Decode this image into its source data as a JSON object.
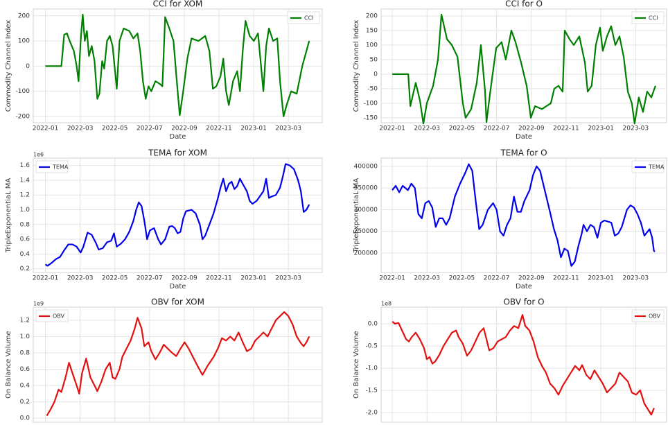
{
  "chart_data": [
    {
      "type": "line",
      "title": "CCI for XOM",
      "xlabel": "Date",
      "ylabel": "Commodity Channel Index",
      "grid": true,
      "legend": "upper right",
      "x": [
        0,
        0.92,
        1.08,
        1.24,
        1.4,
        1.64,
        1.8,
        1.91,
        2.03,
        2.15,
        2.27,
        2.39,
        2.51,
        2.67,
        2.83,
        2.99,
        3.11,
        3.27,
        3.39,
        3.55,
        3.71,
        3.87,
        4.11,
        4.27,
        4.51,
        4.83,
        5.07,
        5.31,
        5.46,
        5.62,
        5.78,
        5.94,
        6.1,
        6.34,
        6.58,
        6.74,
        6.9,
        7.14,
        7.38,
        7.62,
        7.74,
        7.94,
        8.18,
        8.42,
        8.82,
        9.21,
        9.45,
        9.65,
        9.85,
        10.09,
        10.25,
        10.41,
        10.57,
        10.81,
        11.05,
        11.21,
        11.37,
        11.53,
        11.77,
        12.01,
        12.25,
        12.56,
        12.72,
        12.88,
        13.12,
        13.36,
        13.52,
        13.72,
        13.92,
        14.16,
        14.48,
        14.8,
        15.2
      ],
      "series": [
        {
          "name": "CCI",
          "color": "#008000",
          "values": [
            0,
            0,
            125,
            130,
            100,
            60,
            0,
            -60,
            100,
            205,
            100,
            140,
            40,
            80,
            20,
            -130,
            -110,
            20,
            -10,
            100,
            120,
            80,
            -90,
            100,
            150,
            140,
            110,
            130,
            60,
            -60,
            -130,
            -80,
            -100,
            -60,
            -70,
            -80,
            195,
            150,
            100,
            -100,
            -195,
            -100,
            30,
            110,
            100,
            120,
            60,
            -90,
            -80,
            -40,
            30,
            -100,
            -155,
            -60,
            -20,
            -100,
            60,
            180,
            120,
            100,
            130,
            -100,
            80,
            150,
            100,
            110,
            -60,
            -200,
            -150,
            -100,
            -110,
            0,
            100
          ]
        }
      ],
      "xlim": [
        -0.7,
        15.95
      ],
      "xticks": [
        {
          "value": 0,
          "label": "2022-01"
        },
        {
          "value": 2,
          "label": "2022-03"
        },
        {
          "value": 4,
          "label": "2022-05"
        },
        {
          "value": 6,
          "label": "2022-07"
        },
        {
          "value": 8,
          "label": "2022-09"
        },
        {
          "value": 10,
          "label": "2022-11"
        },
        {
          "value": 12,
          "label": "2023-01"
        },
        {
          "value": 14,
          "label": "2023-03"
        }
      ],
      "ylim": [
        -225,
        227
      ],
      "yticks": [
        -200,
        -100,
        0,
        100,
        200
      ]
    },
    {
      "type": "line",
      "title": "CCI for O",
      "xlabel": "Date",
      "ylabel": "Commodity Channel Index",
      "grid": true,
      "legend": "upper right",
      "x": [
        0,
        0.92,
        1.04,
        1.35,
        1.59,
        1.79,
        1.99,
        2.35,
        2.63,
        2.83,
        3.15,
        3.43,
        3.75,
        4.06,
        4.22,
        4.54,
        4.86,
        5.1,
        5.34,
        5.42,
        5.66,
        5.98,
        6.29,
        6.53,
        6.85,
        7.09,
        7.41,
        7.73,
        7.97,
        8.21,
        8.61,
        9.12,
        9.32,
        9.56,
        9.8,
        9.92,
        10.2,
        10.44,
        10.76,
        11.08,
        11.24,
        11.47,
        11.71,
        11.95,
        12.11,
        12.35,
        12.59,
        12.83,
        13.07,
        13.31,
        13.55,
        13.78,
        13.94,
        14.18,
        14.42,
        14.66,
        14.9,
        15.14
      ],
      "series": [
        {
          "name": "CCI",
          "color": "#008000",
          "values": [
            0,
            0,
            -110,
            -30,
            -90,
            -170,
            -100,
            -40,
            50,
            205,
            120,
            100,
            60,
            -100,
            -150,
            -120,
            -30,
            100,
            -60,
            -165,
            -50,
            90,
            110,
            50,
            150,
            110,
            40,
            -40,
            -150,
            -110,
            -120,
            -100,
            -50,
            -40,
            -60,
            150,
            120,
            100,
            130,
            40,
            -60,
            -40,
            100,
            160,
            80,
            130,
            165,
            100,
            130,
            60,
            -60,
            -100,
            -170,
            -80,
            -130,
            -60,
            -80,
            -40
          ]
        }
      ],
      "xlim": [
        -0.64,
        15.78
      ],
      "xticks": [
        {
          "value": 0,
          "label": "2022-01"
        },
        {
          "value": 2,
          "label": "2022-03"
        },
        {
          "value": 4,
          "label": "2022-05"
        },
        {
          "value": 6,
          "label": "2022-07"
        },
        {
          "value": 8,
          "label": "2022-09"
        },
        {
          "value": 10,
          "label": "2022-11"
        },
        {
          "value": 12,
          "label": "2023-01"
        },
        {
          "value": 14,
          "label": "2023-03"
        }
      ],
      "ylim": [
        -167,
        224
      ],
      "yticks": [
        -150,
        -100,
        -50,
        0,
        50,
        100,
        150,
        200
      ]
    },
    {
      "type": "line",
      "title": "TEMA for XOM",
      "xlabel": "Date",
      "ylabel": "TripleExponentiaL MA",
      "offset_label": "1e6",
      "grid": true,
      "legend": "upper left",
      "x": [
        0,
        0.12,
        0.36,
        0.6,
        0.84,
        1.08,
        1.32,
        1.56,
        1.8,
        2.03,
        2.19,
        2.43,
        2.67,
        2.91,
        3.07,
        3.31,
        3.55,
        3.79,
        3.95,
        4.11,
        4.35,
        4.59,
        4.83,
        5.07,
        5.23,
        5.38,
        5.54,
        5.7,
        5.86,
        6.02,
        6.26,
        6.5,
        6.66,
        6.9,
        7.14,
        7.3,
        7.46,
        7.62,
        7.78,
        7.94,
        8.1,
        8.42,
        8.66,
        8.9,
        9.05,
        9.21,
        9.45,
        9.69,
        9.93,
        10.09,
        10.25,
        10.41,
        10.57,
        10.73,
        10.89,
        11.05,
        11.21,
        11.37,
        11.61,
        11.77,
        11.93,
        12.17,
        12.41,
        12.56,
        12.72,
        12.88,
        13.04,
        13.28,
        13.52,
        13.68,
        13.84,
        14.08,
        14.32,
        14.56,
        14.72,
        14.88,
        15.04,
        15.2
      ],
      "series": [
        {
          "name": "TEMA",
          "color": "#0000ee",
          "values": [
            0.26,
            0.24,
            0.28,
            0.33,
            0.36,
            0.45,
            0.53,
            0.53,
            0.5,
            0.42,
            0.5,
            0.69,
            0.66,
            0.55,
            0.46,
            0.48,
            0.56,
            0.58,
            0.68,
            0.5,
            0.54,
            0.6,
            0.7,
            0.85,
            1.0,
            1.1,
            1.05,
            0.85,
            0.6,
            0.72,
            0.75,
            0.6,
            0.53,
            0.6,
            0.77,
            0.78,
            0.75,
            0.68,
            0.7,
            0.88,
            0.98,
            1.0,
            0.95,
            0.8,
            0.6,
            0.65,
            0.8,
            0.95,
            1.15,
            1.3,
            1.42,
            1.25,
            1.35,
            1.38,
            1.28,
            1.32,
            1.42,
            1.35,
            1.25,
            1.12,
            1.08,
            1.12,
            1.2,
            1.25,
            1.42,
            1.16,
            1.18,
            1.2,
            1.3,
            1.45,
            1.62,
            1.6,
            1.55,
            1.4,
            1.25,
            0.97,
            1.0,
            1.07
          ]
        }
      ],
      "xlim": [
        -0.7,
        15.95
      ],
      "xticks": [
        {
          "value": 0,
          "label": "2022-01"
        },
        {
          "value": 2,
          "label": "2022-03"
        },
        {
          "value": 4,
          "label": "2022-05"
        },
        {
          "value": 6,
          "label": "2022-07"
        },
        {
          "value": 8,
          "label": "2022-09"
        },
        {
          "value": 10,
          "label": "2022-11"
        },
        {
          "value": 12,
          "label": "2023-01"
        },
        {
          "value": 14,
          "label": "2023-03"
        }
      ],
      "ylim": [
        0.15,
        1.7
      ],
      "yticks": [
        0.2,
        0.4,
        0.6,
        0.8,
        {
          "value": 1,
          "label": "1.0"
        },
        1.2,
        1.4,
        1.6
      ]
    },
    {
      "type": "line",
      "title": "TEMA for O",
      "xlabel": "Date",
      "ylabel": "TripleExponentiaL MA",
      "grid": true,
      "legend": "upper right",
      "x": [
        0,
        0.2,
        0.4,
        0.6,
        0.9,
        1.1,
        1.3,
        1.5,
        1.7,
        1.9,
        2.1,
        2.3,
        2.5,
        2.7,
        2.9,
        3.1,
        3.3,
        3.6,
        3.9,
        4.2,
        4.4,
        4.6,
        4.8,
        5.0,
        5.2,
        5.5,
        5.8,
        6.0,
        6.2,
        6.4,
        6.6,
        6.8,
        7.0,
        7.2,
        7.4,
        7.6,
        7.9,
        8.1,
        8.3,
        8.5,
        8.8,
        9.1,
        9.3,
        9.5,
        9.7,
        9.9,
        10.1,
        10.3,
        10.5,
        10.7,
        10.9,
        11.0,
        11.2,
        11.4,
        11.6,
        11.8,
        12.0,
        12.2,
        12.6,
        12.8,
        13.0,
        13.2,
        13.5,
        13.7,
        13.9,
        14.1,
        14.3,
        14.5,
        14.8,
        14.95,
        15.05,
        15.1
      ],
      "series": [
        {
          "name": "TEMA",
          "color": "#0000ee",
          "values": [
            345000,
            355000,
            340000,
            355000,
            345000,
            360000,
            350000,
            290000,
            280000,
            315000,
            320000,
            305000,
            260000,
            280000,
            280000,
            265000,
            280000,
            330000,
            360000,
            385000,
            405000,
            390000,
            320000,
            255000,
            265000,
            300000,
            315000,
            300000,
            250000,
            240000,
            265000,
            280000,
            330000,
            295000,
            295000,
            320000,
            345000,
            380000,
            400000,
            390000,
            340000,
            290000,
            255000,
            230000,
            190000,
            210000,
            205000,
            170000,
            180000,
            215000,
            245000,
            265000,
            250000,
            265000,
            260000,
            235000,
            270000,
            275000,
            270000,
            240000,
            245000,
            260000,
            300000,
            310000,
            305000,
            290000,
            270000,
            240000,
            255000,
            235000,
            205000,
            203000
          ]
        }
      ],
      "xlim": [
        -0.64,
        15.78
      ],
      "xticks": [
        {
          "value": 0,
          "label": "2022-01"
        },
        {
          "value": 2,
          "label": "2022-03"
        },
        {
          "value": 4,
          "label": "2022-05"
        },
        {
          "value": 6,
          "label": "2022-07"
        },
        {
          "value": 8,
          "label": "2022-09"
        },
        {
          "value": 10,
          "label": "2022-11"
        },
        {
          "value": 12,
          "label": "2023-01"
        },
        {
          "value": 14,
          "label": "2023-03"
        }
      ],
      "ylim": [
        155000,
        419000
      ],
      "yticks": [
        200000,
        250000,
        300000,
        350000,
        400000
      ]
    },
    {
      "type": "line",
      "title": "OBV for XOM",
      "ylabel": "On Balance Volume",
      "offset_label": "1e9",
      "grid": true,
      "legend": "upper left",
      "x": [
        0.08,
        0.28,
        0.52,
        0.76,
        0.92,
        1.16,
        1.36,
        1.56,
        1.8,
        1.95,
        2.11,
        2.35,
        2.59,
        2.83,
        2.99,
        3.23,
        3.47,
        3.71,
        3.87,
        4.03,
        4.27,
        4.43,
        4.67,
        4.91,
        5.15,
        5.31,
        5.54,
        5.7,
        5.94,
        6.1,
        6.34,
        6.58,
        6.82,
        7.06,
        7.3,
        7.54,
        7.78,
        8.02,
        8.26,
        8.5,
        8.74,
        9.05,
        9.37,
        9.69,
        9.93,
        10.17,
        10.41,
        10.65,
        10.89,
        11.13,
        11.37,
        11.61,
        11.85,
        12.09,
        12.33,
        12.56,
        12.8,
        13.04,
        13.28,
        13.52,
        13.76,
        14.0,
        14.24,
        14.48,
        14.72,
        14.88,
        15.04,
        15.2
      ],
      "series": [
        {
          "name": "OBV",
          "color": "#e31010",
          "values": [
            0.03,
            0.1,
            0.2,
            0.35,
            0.32,
            0.5,
            0.68,
            0.55,
            0.4,
            0.3,
            0.55,
            0.73,
            0.5,
            0.4,
            0.33,
            0.45,
            0.6,
            0.68,
            0.5,
            0.48,
            0.6,
            0.75,
            0.85,
            0.95,
            1.1,
            1.23,
            1.1,
            0.88,
            0.93,
            0.82,
            0.72,
            0.8,
            0.9,
            0.85,
            0.8,
            0.76,
            0.85,
            0.93,
            0.85,
            0.75,
            0.65,
            0.53,
            0.65,
            0.75,
            0.85,
            0.98,
            0.95,
            1.0,
            0.95,
            1.05,
            0.93,
            0.82,
            0.85,
            0.95,
            1.0,
            1.05,
            1.0,
            1.1,
            1.2,
            1.25,
            1.3,
            1.25,
            1.15,
            1.0,
            0.92,
            0.88,
            0.93,
            1.0
          ]
        }
      ],
      "xlim": [
        -0.7,
        15.95
      ],
      "xgrid": [
        0,
        2,
        4,
        6,
        8,
        10,
        12,
        14
      ],
      "ylim": [
        -0.05,
        1.36
      ],
      "yticks": [
        {
          "value": 0,
          "label": "0.0"
        },
        0.2,
        0.4,
        0.6,
        0.8,
        {
          "value": 1,
          "label": "1.0"
        },
        1.2
      ]
    },
    {
      "type": "line",
      "title": "OBV for O",
      "ylabel": "On Balance Volume",
      "offset_label": "1e8",
      "grid": true,
      "legend": "upper right",
      "x": [
        0,
        0.16,
        0.36,
        0.56,
        0.8,
        0.96,
        1.12,
        1.35,
        1.59,
        1.83,
        1.99,
        2.15,
        2.31,
        2.47,
        2.71,
        2.95,
        3.19,
        3.43,
        3.67,
        3.82,
        4.06,
        4.3,
        4.54,
        4.78,
        5.02,
        5.26,
        5.42,
        5.58,
        5.82,
        6.06,
        6.29,
        6.53,
        6.77,
        7.01,
        7.25,
        7.49,
        7.65,
        7.89,
        8.13,
        8.37,
        8.61,
        8.84,
        9.08,
        9.32,
        9.56,
        9.8,
        10.04,
        10.28,
        10.52,
        10.76,
        10.92,
        11.16,
        11.39,
        11.63,
        11.87,
        12.11,
        12.35,
        12.59,
        12.83,
        13.07,
        13.31,
        13.55,
        13.78,
        14.02,
        14.26,
        14.5,
        14.74,
        14.9,
        15.06
      ],
      "series": [
        {
          "name": "OBV",
          "color": "#e31010",
          "values": [
            0.05,
            0.0,
            0.02,
            -0.15,
            -0.35,
            -0.4,
            -0.3,
            -0.2,
            -0.35,
            -0.55,
            -0.8,
            -0.75,
            -0.9,
            -0.85,
            -0.7,
            -0.5,
            -0.35,
            -0.2,
            -0.15,
            -0.3,
            -0.45,
            -0.72,
            -0.6,
            -0.4,
            -0.2,
            -0.1,
            -0.35,
            -0.6,
            -0.55,
            -0.4,
            -0.35,
            -0.3,
            -0.15,
            -0.05,
            -0.1,
            0.2,
            -0.05,
            -0.15,
            -0.4,
            -0.75,
            -0.95,
            -1.1,
            -1.35,
            -1.45,
            -1.6,
            -1.4,
            -1.25,
            -1.1,
            -0.95,
            -1.05,
            -0.93,
            -1.15,
            -1.25,
            -1.05,
            -1.2,
            -1.35,
            -1.55,
            -1.45,
            -1.35,
            -1.1,
            -1.2,
            -1.3,
            -1.55,
            -1.6,
            -1.5,
            -1.8,
            -1.95,
            -2.05,
            -1.9
          ]
        }
      ],
      "xlim": [
        -0.64,
        15.78
      ],
      "xgrid": [
        0,
        2,
        4,
        6,
        8,
        10,
        12,
        14
      ],
      "ylim": [
        -2.22,
        0.375
      ],
      "yticks": [
        {
          "value": 0,
          "label": "0.0"
        },
        -0.5,
        {
          "value": -1,
          "label": "-1.0"
        },
        -1.5,
        {
          "value": -2,
          "label": "-2.0"
        }
      ]
    }
  ]
}
